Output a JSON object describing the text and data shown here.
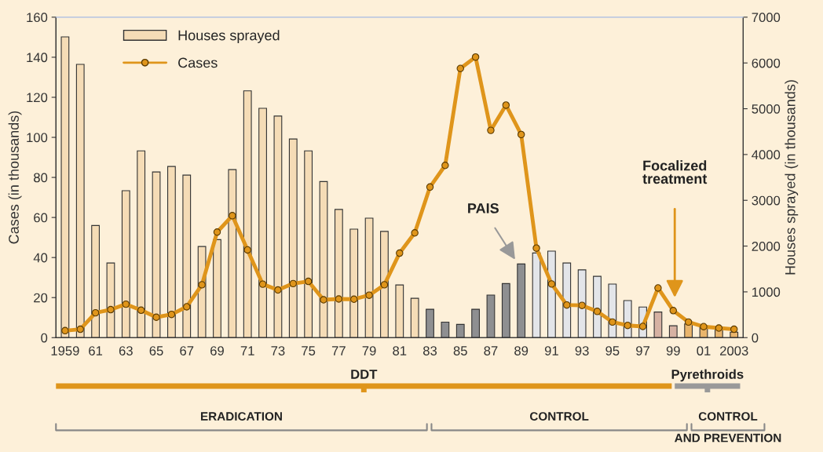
{
  "chart_data": {
    "type": "bar",
    "categories": [
      "1959",
      null,
      "61",
      null,
      "63",
      null,
      "65",
      null,
      "67",
      null,
      "69",
      null,
      "71",
      null,
      "73",
      null,
      "75",
      null,
      "77",
      null,
      "79",
      null,
      "81",
      null,
      "83",
      null,
      "85",
      null,
      "87",
      null,
      "89",
      null,
      "91",
      null,
      "93",
      null,
      "95",
      null,
      "97",
      null,
      "99",
      null,
      "01",
      null,
      "2003"
    ],
    "series": [
      {
        "name": "Houses sprayed",
        "axis": "y2",
        "colors": [
          "#f5dcb6",
          "#f5dcb6",
          "#f5dcb6",
          "#f5dcb6",
          "#f5dcb6",
          "#f5dcb6",
          "#f5dcb6",
          "#f5dcb6",
          "#f5dcb6",
          "#f5dcb6",
          "#f5dcb6",
          "#f5dcb6",
          "#f5dcb6",
          "#f5dcb6",
          "#f5dcb6",
          "#f5dcb6",
          "#f5dcb6",
          "#f5dcb6",
          "#f5dcb6",
          "#f5dcb6",
          "#f5dcb6",
          "#f5dcb6",
          "#f5dcb6",
          "#f5dcb6",
          "#8e8f91",
          "#8e8f91",
          "#8e8f91",
          "#8e8f91",
          "#8e8f91",
          "#8e8f91",
          "#8e8f91",
          "#e3e5e9",
          "#e3e5e9",
          "#e3e5e9",
          "#e3e5e9",
          "#e3e5e9",
          "#e3e5e9",
          "#e3e5e9",
          "#e3e5e9",
          "#d6b2a3",
          "#d6b2a3",
          "#e9b56c",
          "#e9b56c",
          "#e9b56c",
          "#e9b56c"
        ],
        "values": [
          6570,
          5970,
          2450,
          1630,
          3210,
          4080,
          3620,
          3740,
          3550,
          1990,
          2140,
          3670,
          5390,
          5010,
          4840,
          4340,
          4080,
          3410,
          2800,
          2370,
          2610,
          2320,
          1150,
          860,
          620,
          340,
          290,
          620,
          930,
          1180,
          1610,
          1850,
          1890,
          1630,
          1480,
          1340,
          1170,
          810,
          670,
          560,
          260,
          300,
          220,
          200,
          120
        ]
      },
      {
        "name": "Cases",
        "type": "line",
        "axis": "y",
        "color": "#df951b",
        "marker": "circle",
        "values": [
          3.5,
          4.2,
          12.4,
          14,
          16.7,
          13.7,
          10.2,
          11.6,
          15.4,
          26.4,
          52.7,
          60.9,
          43.8,
          26.7,
          23.8,
          27,
          28.1,
          18.9,
          19.3,
          19.2,
          21.2,
          26.4,
          42.2,
          52.3,
          75.2,
          86,
          134.4,
          140.1,
          103.5,
          116.1,
          101.4,
          44.7,
          26.8,
          16.3,
          16.1,
          13.1,
          7.8,
          6.1,
          5.6,
          24.8,
          13.5,
          7.8,
          5.5,
          4.8,
          4.2
        ]
      }
    ],
    "ylabel": "Cases (in thousands)",
    "y2label": "Houses sprayed (in thousands)",
    "ylim": [
      0,
      160
    ],
    "yticks": [
      0,
      20,
      40,
      60,
      80,
      100,
      120,
      140,
      160
    ],
    "y2lim": [
      0,
      7000
    ],
    "y2ticks": [
      0,
      1000,
      2000,
      3000,
      4000,
      5000,
      6000,
      7000
    ],
    "legend": "top left",
    "annotations": [
      "PAIS",
      "Focalized\ntreatment",
      "DDT",
      "Pyrethroids",
      "ERADICATION",
      "CONTROL",
      "CONTROL\nAND PREVENTION"
    ]
  }
}
